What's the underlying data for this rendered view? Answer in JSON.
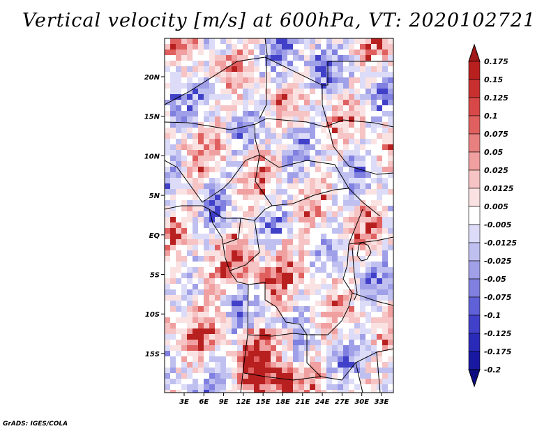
{
  "title": "Vertical velocity [m/s] at 600hPa, VT: 2020102721",
  "credit": "GrADS: IGES/COLA",
  "map": {
    "lat_labels": [
      "20N",
      "15N",
      "10N",
      "5N",
      "EQ",
      "5S",
      "10S",
      "15S"
    ],
    "lon_labels": [
      "3E",
      "6E",
      "9E",
      "12E",
      "15E",
      "18E",
      "21E",
      "24E",
      "27E",
      "30E",
      "33E"
    ]
  },
  "colorbar": {
    "labels": [
      "0.175",
      "0.15",
      "0.125",
      "0.1",
      "0.075",
      "0.05",
      "0.025",
      "0.0125",
      "0.005",
      "-0.005",
      "-0.0125",
      "-0.025",
      "-0.05",
      "-0.075",
      "-0.1",
      "-0.125",
      "-0.175",
      "-0.2"
    ],
    "colors": [
      "#a01818",
      "#b82020",
      "#c83030",
      "#d84848",
      "#e06060",
      "#e88080",
      "#f0a0a0",
      "#f6c4c4",
      "#fbe2e2",
      "#ffffff",
      "#dcdcf8",
      "#c0c0f0",
      "#a0a0e8",
      "#8080e0",
      "#6060d8",
      "#4040c8",
      "#2a2ab8",
      "#1818a0",
      "#0c0c80"
    ]
  },
  "colors": {
    "positive": "#e88080",
    "negative": "#8080e0",
    "border": "#000000"
  }
}
